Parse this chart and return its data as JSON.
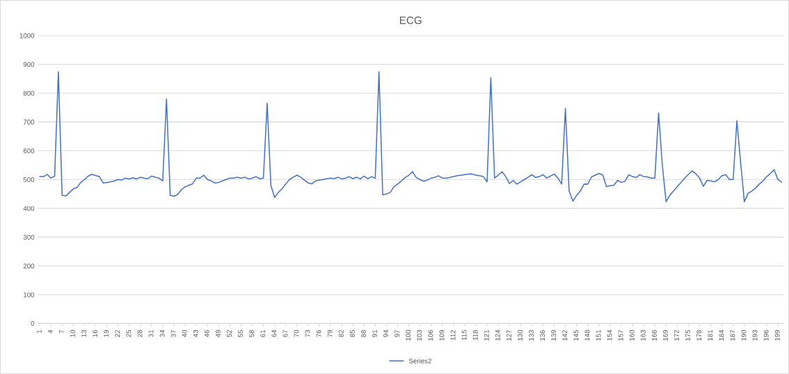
{
  "chart_data": {
    "type": "line",
    "title": "ECG",
    "categories": [
      "1",
      null,
      null,
      "4",
      null,
      null,
      "7",
      null,
      null,
      "10",
      null,
      null,
      "13",
      null,
      null,
      "16",
      null,
      null,
      "19",
      null,
      null,
      "22",
      null,
      null,
      "25",
      null,
      null,
      "28",
      null,
      null,
      "31",
      null,
      null,
      "34",
      null,
      null,
      "37",
      null,
      null,
      "40",
      null,
      null,
      "43",
      null,
      null,
      "46",
      null,
      null,
      "49",
      null,
      null,
      "52",
      null,
      null,
      "55",
      null,
      null,
      "58",
      null,
      null,
      "61",
      null,
      null,
      "64",
      null,
      null,
      "67",
      null,
      null,
      "70",
      null,
      null,
      "73",
      null,
      null,
      "76",
      null,
      null,
      "79",
      null,
      null,
      "82",
      null,
      null,
      "85",
      null,
      null,
      "88",
      null,
      null,
      "91",
      null,
      null,
      "94",
      null,
      null,
      "97",
      null,
      null,
      "100",
      null,
      null,
      "103",
      null,
      null,
      "106",
      null,
      null,
      "109",
      null,
      null,
      "112",
      null,
      null,
      "115",
      null,
      null,
      "118",
      null,
      null,
      "121",
      null,
      null,
      "124",
      null,
      null,
      "127",
      null,
      null,
      "130",
      null,
      null,
      "133",
      null,
      null,
      "136",
      null,
      null,
      "139",
      null,
      null,
      "142",
      null,
      null,
      "145",
      null,
      null,
      "148",
      null,
      null,
      "151",
      null,
      null,
      "154",
      null,
      null,
      "157",
      null,
      null,
      "160",
      null,
      null,
      "163",
      null,
      null,
      "166",
      null,
      null,
      "169",
      null,
      null,
      "172",
      null,
      null,
      "175",
      null,
      null,
      "178",
      null,
      null,
      "181",
      null,
      null,
      "184",
      null,
      null,
      "187",
      null,
      null,
      "190",
      null,
      null,
      "193",
      null,
      null,
      "196",
      null,
      null,
      "199",
      null
    ],
    "series": [
      {
        "name": "Series2",
        "color": "#4472c4",
        "values": [
          510,
          510,
          518,
          505,
          512,
          874,
          445,
          443,
          455,
          468,
          472,
          490,
          500,
          512,
          518,
          514,
          510,
          488,
          490,
          492,
          495,
          500,
          498,
          505,
          502,
          506,
          502,
          508,
          505,
          503,
          512,
          508,
          505,
          495,
          780,
          445,
          442,
          448,
          465,
          475,
          480,
          485,
          505,
          505,
          515,
          500,
          495,
          488,
          490,
          495,
          500,
          505,
          505,
          508,
          505,
          508,
          502,
          505,
          510,
          503,
          505,
          765,
          480,
          438,
          455,
          468,
          485,
          500,
          508,
          515,
          508,
          498,
          488,
          485,
          495,
          498,
          500,
          503,
          505,
          503,
          508,
          502,
          505,
          510,
          503,
          508,
          502,
          512,
          503,
          510,
          505,
          874,
          447,
          450,
          455,
          475,
          484,
          495,
          507,
          515,
          527,
          507,
          500,
          494,
          498,
          505,
          508,
          513,
          505,
          505,
          507,
          510,
          513,
          515,
          517,
          519,
          519,
          515,
          513,
          510,
          492,
          854,
          505,
          515,
          527,
          510,
          486,
          497,
          484,
          492,
          500,
          508,
          517,
          507,
          510,
          517,
          505,
          512,
          519,
          505,
          484,
          747,
          460,
          425,
          445,
          460,
          484,
          484,
          509,
          515,
          521,
          517,
          476,
          478,
          480,
          497,
          490,
          494,
          517,
          510,
          507,
          517,
          510,
          509,
          505,
          505,
          731,
          550,
          423,
          445,
          460,
          475,
          490,
          505,
          518,
          530,
          520,
          505,
          476,
          497,
          495,
          492,
          500,
          513,
          517,
          500,
          500,
          704,
          560,
          423,
          452,
          460,
          470,
          484,
          495,
          510,
          521,
          534,
          500,
          491
        ]
      }
    ],
    "ylim": [
      0,
      1000
    ],
    "yticks": [
      0,
      100,
      200,
      300,
      400,
      500,
      600,
      700,
      800,
      900,
      1000
    ],
    "grid": "y",
    "legend": "bottom",
    "marker": "none",
    "line_style": "solid"
  }
}
